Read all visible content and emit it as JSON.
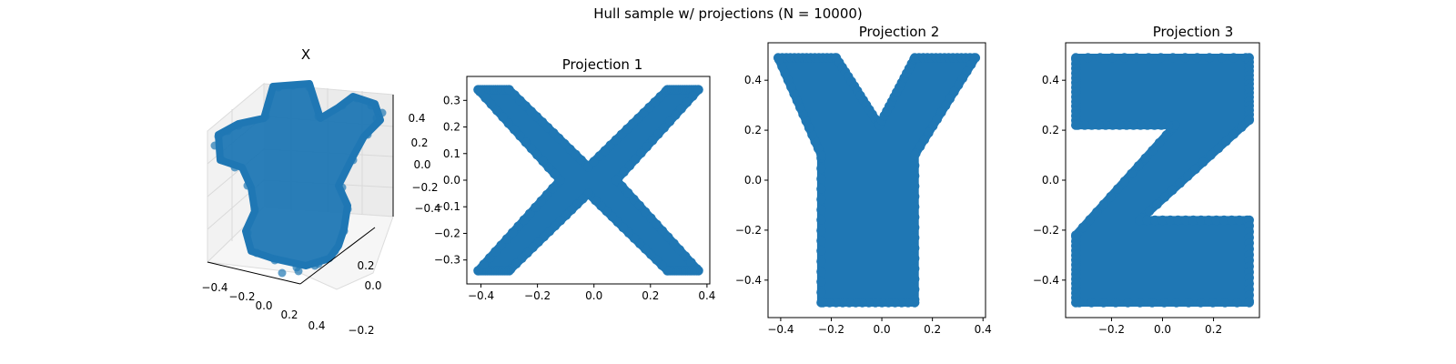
{
  "figure": {
    "suptitle": "Hull sample w/ projections (N = 10000)",
    "point_color": "#1f77b4"
  },
  "chart_data": [
    {
      "type": "scatter3d",
      "title": "X",
      "xlabel": "",
      "ylabel": "",
      "zlabel": "",
      "xlim": [
        -0.45,
        0.42
      ],
      "ylim": [
        -0.35,
        0.35
      ],
      "zlim": [
        -0.5,
        0.5
      ],
      "x_ticks": [
        "−0.4",
        "−0.2",
        "0.0",
        "0.2",
        "0.4"
      ],
      "y_ticks": [
        "−0.2",
        "0.0",
        "0.2"
      ],
      "z_ticks": [
        "−0.4",
        "−0.2",
        "0.0",
        "0.2",
        "0.4"
      ],
      "grid": true,
      "n_points": 10000
    },
    {
      "type": "scatter",
      "title": "Projection 1",
      "xlabel": "",
      "ylabel": "",
      "xlim": [
        -0.45,
        0.41
      ],
      "ylim": [
        -0.39,
        0.39
      ],
      "x_ticks": [
        "−0.4",
        "−0.2",
        "0.0",
        "0.2",
        "0.4"
      ],
      "y_ticks": [
        "−0.3",
        "−0.2",
        "−0.1",
        "0.0",
        "0.1",
        "0.2",
        "0.3"
      ],
      "shape": "letter X",
      "outline": [
        [
          -0.41,
          0.34
        ],
        [
          -0.3,
          0.34
        ],
        [
          -0.02,
          0.05
        ],
        [
          0.26,
          0.34
        ],
        [
          0.37,
          0.34
        ],
        [
          0.08,
          0.0
        ],
        [
          0.37,
          -0.34
        ],
        [
          0.26,
          -0.34
        ],
        [
          -0.02,
          -0.05
        ],
        [
          -0.3,
          -0.34
        ],
        [
          -0.41,
          -0.34
        ],
        [
          -0.12,
          0.0
        ]
      ]
    },
    {
      "type": "scatter",
      "title": "Projection 2",
      "xlabel": "",
      "ylabel": "",
      "xlim": [
        -0.45,
        0.41
      ],
      "ylim": [
        -0.55,
        0.55
      ],
      "x_ticks": [
        "−0.4",
        "−0.2",
        "0.0",
        "0.2",
        "0.4"
      ],
      "y_ticks": [
        "−0.4",
        "−0.2",
        "0.0",
        "0.2",
        "0.4"
      ],
      "shape": "letter Y",
      "outline": [
        [
          -0.41,
          0.49
        ],
        [
          -0.18,
          0.49
        ],
        [
          -0.01,
          0.22
        ],
        [
          0.13,
          0.49
        ],
        [
          0.37,
          0.49
        ],
        [
          0.13,
          0.1
        ],
        [
          0.13,
          -0.49
        ],
        [
          -0.24,
          -0.49
        ],
        [
          -0.24,
          0.1
        ]
      ]
    },
    {
      "type": "scatter",
      "title": "Projection 3",
      "xlabel": "",
      "ylabel": "",
      "xlim": [
        -0.38,
        0.38
      ],
      "ylim": [
        -0.55,
        0.55
      ],
      "x_ticks": [
        "−0.2",
        "0.0",
        "0.2"
      ],
      "y_ticks": [
        "−0.4",
        "−0.2",
        "0.0",
        "0.2",
        "0.4"
      ],
      "shape": "letter Z",
      "outline": [
        [
          -0.34,
          0.49
        ],
        [
          0.34,
          0.49
        ],
        [
          0.34,
          0.24
        ],
        [
          -0.09,
          -0.16
        ],
        [
          0.34,
          -0.16
        ],
        [
          0.34,
          -0.49
        ],
        [
          -0.34,
          -0.49
        ],
        [
          -0.34,
          -0.22
        ],
        [
          0.05,
          0.22
        ],
        [
          -0.34,
          0.22
        ]
      ]
    }
  ]
}
